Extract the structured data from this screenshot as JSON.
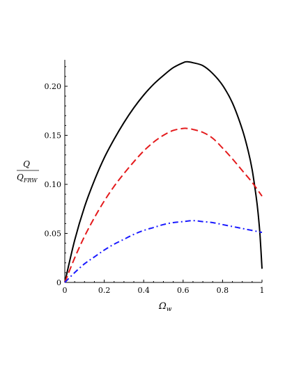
{
  "chart_data": {
    "type": "line",
    "xlabel_main": "Ω",
    "xlabel_sub": "w",
    "ylabel_num": "Q",
    "ylabel_den_main": "Q",
    "ylabel_den_sub": "FRW",
    "xlim": [
      0,
      1
    ],
    "ylim": [
      0,
      0.225
    ],
    "xticks": [
      0,
      0.2,
      0.4,
      0.6,
      0.8,
      1
    ],
    "xtick_labels": [
      "0",
      "0.2",
      "0.4",
      "0.6",
      "0.8",
      "1"
    ],
    "yticks": [
      0,
      0.05,
      0.1,
      0.15,
      0.2
    ],
    "ytick_labels": [
      "0",
      "0.05",
      "0.10",
      "0.15",
      "0.20"
    ],
    "grid": false,
    "series": [
      {
        "color": "#000000",
        "dash": "solid",
        "x": [
          0,
          0.05,
          0.1,
          0.15,
          0.2,
          0.25,
          0.3,
          0.35,
          0.4,
          0.45,
          0.5,
          0.55,
          0.6,
          0.62,
          0.65,
          0.7,
          0.75,
          0.8,
          0.85,
          0.9,
          0.93,
          0.95,
          0.97,
          0.98,
          0.99,
          1.0
        ],
        "y": [
          0,
          0.043,
          0.077,
          0.104,
          0.127,
          0.146,
          0.163,
          0.178,
          0.191,
          0.202,
          0.211,
          0.219,
          0.224,
          0.225,
          0.224,
          0.221,
          0.213,
          0.201,
          0.183,
          0.156,
          0.134,
          0.115,
          0.088,
          0.071,
          0.048,
          0.014
        ]
      },
      {
        "color": "#e41a1c",
        "dash": "dashed",
        "x": [
          0,
          0.05,
          0.1,
          0.15,
          0.2,
          0.25,
          0.3,
          0.35,
          0.4,
          0.45,
          0.5,
          0.55,
          0.6,
          0.62,
          0.65,
          0.7,
          0.75,
          0.8,
          0.85,
          0.9,
          0.95,
          1.0
        ],
        "y": [
          0,
          0.025,
          0.047,
          0.066,
          0.083,
          0.098,
          0.111,
          0.123,
          0.134,
          0.143,
          0.15,
          0.155,
          0.157,
          0.157,
          0.156,
          0.153,
          0.147,
          0.137,
          0.126,
          0.114,
          0.102,
          0.088
        ]
      },
      {
        "color": "#1a1aff",
        "dash": "dashdot",
        "x": [
          0,
          0.05,
          0.1,
          0.15,
          0.2,
          0.25,
          0.3,
          0.35,
          0.4,
          0.45,
          0.5,
          0.55,
          0.6,
          0.65,
          0.7,
          0.75,
          0.8,
          0.85,
          0.9,
          0.95,
          1.0
        ],
        "y": [
          0,
          0.01,
          0.019,
          0.026,
          0.033,
          0.039,
          0.044,
          0.049,
          0.053,
          0.056,
          0.059,
          0.061,
          0.062,
          0.063,
          0.062,
          0.061,
          0.059,
          0.057,
          0.055,
          0.053,
          0.051
        ]
      }
    ]
  }
}
